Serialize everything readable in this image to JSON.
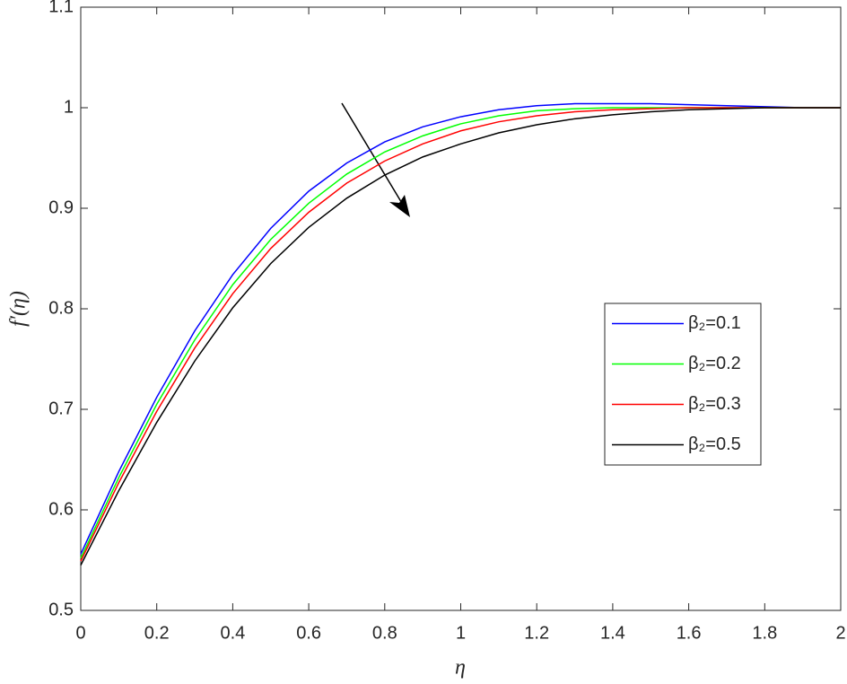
{
  "chart_data": {
    "type": "line",
    "xlabel": "η",
    "ylabel": "f′(η)",
    "x": [
      0,
      0.1,
      0.2,
      0.3,
      0.4,
      0.5,
      0.6,
      0.7,
      0.8,
      0.9,
      1.0,
      1.1,
      1.2,
      1.3,
      1.4,
      1.5,
      1.6,
      1.7,
      1.8,
      1.9,
      2.0
    ],
    "series": [
      {
        "name": "β₂=0.1",
        "color": "#0000ff",
        "values": [
          0.556,
          0.638,
          0.712,
          0.778,
          0.834,
          0.88,
          0.917,
          0.945,
          0.966,
          0.981,
          0.991,
          0.998,
          1.002,
          1.004,
          1.004,
          1.004,
          1.003,
          1.002,
          1.001,
          1.0,
          1.0
        ]
      },
      {
        "name": "β₂=0.2",
        "color": "#00ff00",
        "values": [
          0.552,
          0.632,
          0.705,
          0.769,
          0.824,
          0.869,
          0.905,
          0.934,
          0.956,
          0.972,
          0.984,
          0.992,
          0.997,
          0.999,
          1.0,
          1.0,
          1.0,
          1.0,
          1.0,
          1.0,
          1.0
        ]
      },
      {
        "name": "β₂=0.3",
        "color": "#ff0000",
        "values": [
          0.549,
          0.627,
          0.698,
          0.761,
          0.815,
          0.86,
          0.896,
          0.925,
          0.947,
          0.964,
          0.977,
          0.986,
          0.992,
          0.996,
          0.998,
          0.999,
          1.0,
          1.0,
          1.0,
          1.0,
          1.0
        ]
      },
      {
        "name": "β₂=0.5",
        "color": "#000000",
        "values": [
          0.545,
          0.619,
          0.687,
          0.748,
          0.801,
          0.845,
          0.881,
          0.91,
          0.933,
          0.951,
          0.964,
          0.975,
          0.983,
          0.989,
          0.993,
          0.996,
          0.998,
          0.999,
          1.0,
          1.0,
          1.0
        ]
      }
    ],
    "xlim": [
      0,
      2
    ],
    "ylim": [
      0.5,
      1.1
    ],
    "xticks": [
      0,
      0.2,
      0.4,
      0.6,
      0.8,
      1,
      1.2,
      1.4,
      1.6,
      1.8,
      2
    ],
    "yticks": [
      0.5,
      0.6,
      0.7,
      0.8,
      0.9,
      1,
      1.1
    ],
    "grid": false,
    "legend": "east"
  }
}
